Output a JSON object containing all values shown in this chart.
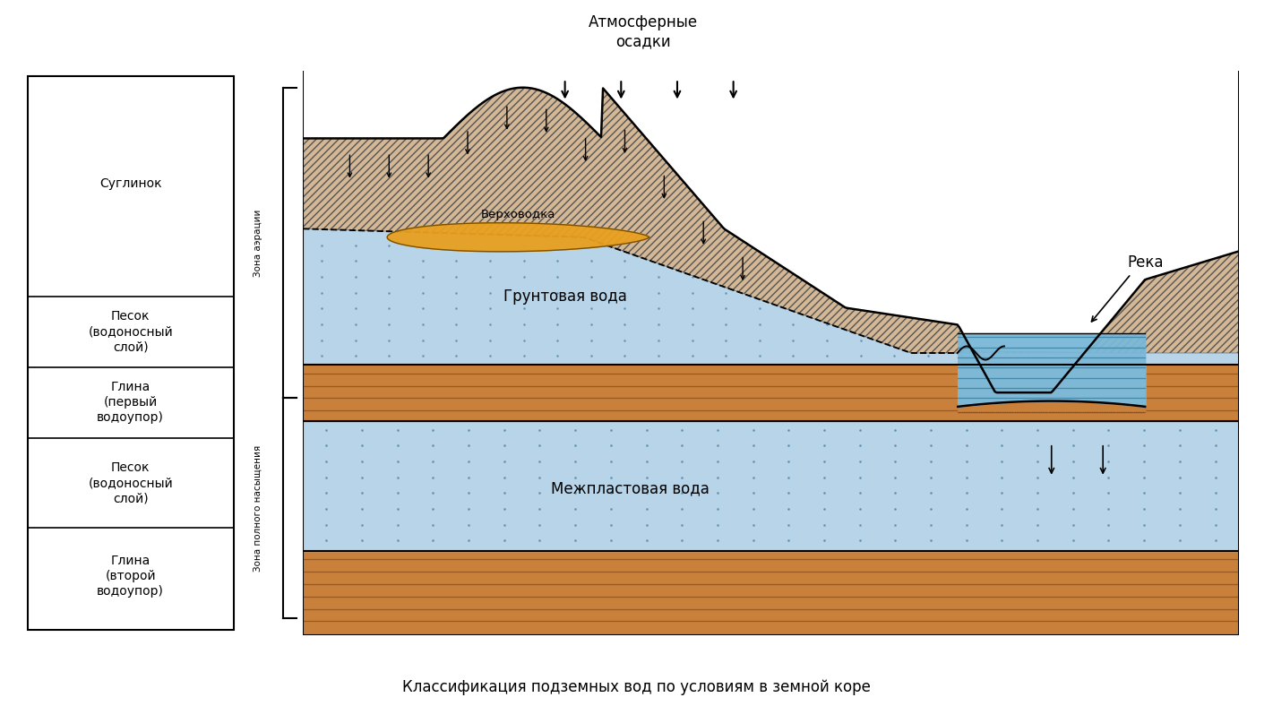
{
  "title": "Классификация подземных вод по условиям в земной коре",
  "atm_label": "Атмосферные\nосадки",
  "bg_color": "#f5f0e8",
  "zona_aeration_label": "Зона аэрации",
  "zona_saturation_label": "Зона полного насыщения",
  "gruntovaya_label": "Грунтовая вода",
  "mezhplast_label": "Межпластовая вода",
  "verkhovodka_label": "Верховодка",
  "reka_label": "Река",
  "tan_color": "#d4b896",
  "clay_color": "#c8803a",
  "groundwater_color": "#b8d4e8",
  "hatch_tan": "#d4b896",
  "verkhovodka_fill": "#e8a020",
  "layer_boundaries": [
    1.0,
    0.6,
    0.475,
    0.35,
    0.19,
    0.02
  ],
  "layer_labels": [
    "Суглинок",
    "Песок\n(водоносный\nслой)",
    "Глина\n(первый\nводоупор)",
    "Песок\n(водоносный\nслой)",
    "Глина\n(второй\nводоупор)"
  ]
}
